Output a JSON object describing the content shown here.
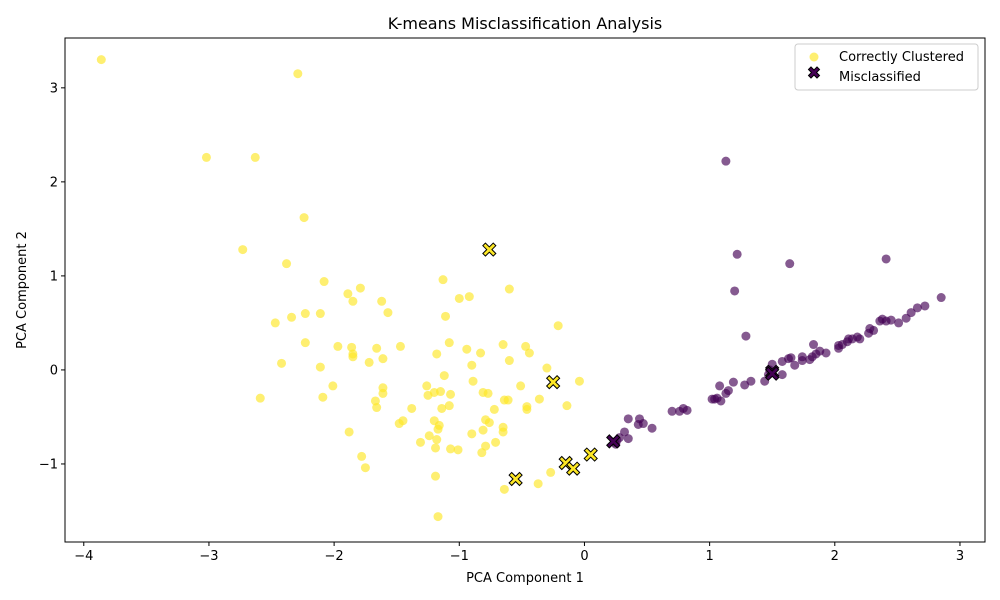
{
  "chart_data": {
    "type": "scatter",
    "title": "K-means Misclassification Analysis",
    "xlabel": "PCA Component 1",
    "ylabel": "PCA Component 2",
    "xlim": [
      -4.15,
      3.2
    ],
    "ylim": [
      -1.83,
      3.53
    ],
    "xticks": [
      -4,
      -3,
      -2,
      -1,
      0,
      1,
      2,
      3
    ],
    "yticks": [
      -1,
      0,
      1,
      2,
      3
    ],
    "legend_position": "top-right",
    "grid": false,
    "colors": {
      "cluster_yellow": "#fde725",
      "cluster_purple": "#440154",
      "marker_edge": "#000000"
    },
    "series": [
      {
        "name": "Correctly Clustered",
        "marker": "circle",
        "points_yellow": [
          [
            -3.86,
            3.3
          ],
          [
            -2.29,
            3.15
          ],
          [
            -3.02,
            2.26
          ],
          [
            -2.63,
            2.26
          ],
          [
            -2.24,
            1.62
          ],
          [
            -2.73,
            1.28
          ],
          [
            -2.38,
            1.13
          ],
          [
            -2.08,
            0.94
          ],
          [
            -1.79,
            0.87
          ],
          [
            -1.89,
            0.81
          ],
          [
            -1.85,
            0.73
          ],
          [
            -1.62,
            0.73
          ],
          [
            -1.57,
            0.61
          ],
          [
            -2.23,
            0.6
          ],
          [
            -2.11,
            0.6
          ],
          [
            -2.34,
            0.56
          ],
          [
            -2.47,
            0.5
          ],
          [
            -2.23,
            0.29
          ],
          [
            -1.97,
            0.25
          ],
          [
            -1.86,
            0.24
          ],
          [
            -1.66,
            0.23
          ],
          [
            -1.85,
            0.17
          ],
          [
            -1.85,
            0.14
          ],
          [
            -1.61,
            0.12
          ],
          [
            -1.72,
            0.08
          ],
          [
            -2.42,
            0.07
          ],
          [
            -2.11,
            0.03
          ],
          [
            -1.47,
            0.25
          ],
          [
            -2.01,
            -0.17
          ],
          [
            -1.61,
            -0.19
          ],
          [
            -1.61,
            -0.25
          ],
          [
            -2.09,
            -0.29
          ],
          [
            -2.59,
            -0.3
          ],
          [
            -1.67,
            -0.33
          ],
          [
            -1.66,
            -0.4
          ],
          [
            -1.38,
            -0.41
          ],
          [
            -1.45,
            -0.54
          ],
          [
            -1.48,
            -0.57
          ],
          [
            -1.88,
            -0.66
          ],
          [
            -1.31,
            -0.77
          ],
          [
            -1.78,
            -0.92
          ],
          [
            -1.75,
            -1.04
          ],
          [
            -1.13,
            0.96
          ],
          [
            -1.0,
            0.76
          ],
          [
            -0.92,
            0.78
          ],
          [
            -0.6,
            0.86
          ],
          [
            -1.11,
            0.57
          ],
          [
            -0.21,
            0.47
          ],
          [
            -1.08,
            0.29
          ],
          [
            -0.65,
            0.27
          ],
          [
            -0.47,
            0.25
          ],
          [
            -0.94,
            0.22
          ],
          [
            -1.18,
            0.17
          ],
          [
            -0.83,
            0.18
          ],
          [
            -0.44,
            0.18
          ],
          [
            -0.6,
            0.1
          ],
          [
            -0.9,
            0.05
          ],
          [
            -0.3,
            0.02
          ],
          [
            -1.12,
            -0.06
          ],
          [
            -0.89,
            -0.12
          ],
          [
            -0.04,
            -0.12
          ],
          [
            -1.26,
            -0.17
          ],
          [
            -0.51,
            -0.17
          ],
          [
            -1.15,
            -0.23
          ],
          [
            -1.2,
            -0.24
          ],
          [
            -0.81,
            -0.24
          ],
          [
            -1.25,
            -0.27
          ],
          [
            -1.07,
            -0.26
          ],
          [
            -0.77,
            -0.25
          ],
          [
            -0.64,
            -0.32
          ],
          [
            -0.61,
            -0.32
          ],
          [
            -0.36,
            -0.31
          ],
          [
            -1.08,
            -0.38
          ],
          [
            -0.14,
            -0.38
          ],
          [
            -1.14,
            -0.41
          ],
          [
            -0.72,
            -0.42
          ],
          [
            -0.46,
            -0.42
          ],
          [
            -0.46,
            -0.39
          ],
          [
            -1.2,
            -0.54
          ],
          [
            -0.79,
            -0.53
          ],
          [
            -0.76,
            -0.56
          ],
          [
            -1.16,
            -0.59
          ],
          [
            -1.17,
            -0.63
          ],
          [
            -0.65,
            -0.61
          ],
          [
            -0.65,
            -0.66
          ],
          [
            -0.81,
            -0.64
          ],
          [
            -1.24,
            -0.7
          ],
          [
            -0.9,
            -0.68
          ],
          [
            -1.18,
            -0.74
          ],
          [
            -0.71,
            -0.77
          ],
          [
            -1.19,
            -0.83
          ],
          [
            -0.79,
            -0.81
          ],
          [
            -1.07,
            -0.84
          ],
          [
            -1.01,
            -0.85
          ],
          [
            -0.82,
            -0.88
          ],
          [
            -1.19,
            -1.13
          ],
          [
            -0.27,
            -1.09
          ],
          [
            -0.37,
            -1.21
          ],
          [
            -0.64,
            -1.27
          ],
          [
            -1.17,
            -1.56
          ]
        ],
        "points_purple": [
          [
            1.13,
            2.22
          ],
          [
            1.22,
            1.23
          ],
          [
            2.41,
            1.18
          ],
          [
            1.64,
            1.13
          ],
          [
            1.2,
            0.84
          ],
          [
            2.85,
            0.77
          ],
          [
            2.72,
            0.68
          ],
          [
            2.66,
            0.66
          ],
          [
            2.61,
            0.61
          ],
          [
            2.57,
            0.55
          ],
          [
            2.51,
            0.5
          ],
          [
            2.45,
            0.53
          ],
          [
            2.41,
            0.52
          ],
          [
            2.38,
            0.54
          ],
          [
            2.36,
            0.52
          ],
          [
            2.31,
            0.42
          ],
          [
            2.28,
            0.44
          ],
          [
            2.27,
            0.39
          ],
          [
            2.2,
            0.33
          ],
          [
            2.18,
            0.35
          ],
          [
            2.14,
            0.33
          ],
          [
            2.11,
            0.33
          ],
          [
            2.1,
            0.3
          ],
          [
            2.06,
            0.27
          ],
          [
            2.03,
            0.26
          ],
          [
            2.03,
            0.23
          ],
          [
            1.93,
            0.18
          ],
          [
            1.88,
            0.2
          ],
          [
            1.85,
            0.17
          ],
          [
            1.83,
            0.27
          ],
          [
            1.82,
            0.14
          ],
          [
            1.8,
            0.11
          ],
          [
            1.74,
            0.14
          ],
          [
            1.74,
            0.1
          ],
          [
            1.68,
            0.05
          ],
          [
            1.65,
            0.13
          ],
          [
            1.63,
            0.12
          ],
          [
            1.58,
            0.09
          ],
          [
            1.58,
            -0.05
          ],
          [
            1.5,
            0.06
          ],
          [
            1.48,
            0.0
          ],
          [
            1.47,
            -0.05
          ],
          [
            1.44,
            -0.12
          ],
          [
            1.33,
            -0.12
          ],
          [
            1.29,
            0.36
          ],
          [
            1.28,
            -0.16
          ],
          [
            1.19,
            -0.13
          ],
          [
            1.15,
            -0.22
          ],
          [
            1.13,
            -0.25
          ],
          [
            1.08,
            -0.17
          ],
          [
            1.06,
            -0.3
          ],
          [
            1.04,
            -0.31
          ],
          [
            1.09,
            -0.33
          ],
          [
            1.02,
            -0.31
          ],
          [
            0.82,
            -0.43
          ],
          [
            0.79,
            -0.41
          ],
          [
            0.76,
            -0.44
          ],
          [
            0.7,
            -0.44
          ],
          [
            0.54,
            -0.62
          ],
          [
            0.47,
            -0.57
          ],
          [
            0.44,
            -0.52
          ],
          [
            0.43,
            -0.58
          ],
          [
            0.35,
            -0.52
          ],
          [
            0.35,
            -0.73
          ],
          [
            0.32,
            -0.66
          ],
          [
            0.28,
            -0.72
          ],
          [
            0.26,
            -0.75
          ],
          [
            0.25,
            -0.79
          ],
          [
            0.24,
            -0.77
          ]
        ]
      },
      {
        "name": "Misclassified",
        "marker": "X",
        "points_yellow": [
          [
            -0.76,
            1.28
          ],
          [
            -0.25,
            -0.13
          ],
          [
            -0.15,
            -0.99
          ],
          [
            -0.09,
            -1.05
          ],
          [
            0.05,
            -0.9
          ],
          [
            -0.55,
            -1.16
          ]
        ],
        "points_purple": [
          [
            1.5,
            -0.02
          ],
          [
            1.5,
            -0.04
          ],
          [
            0.23,
            -0.76
          ]
        ]
      }
    ]
  }
}
